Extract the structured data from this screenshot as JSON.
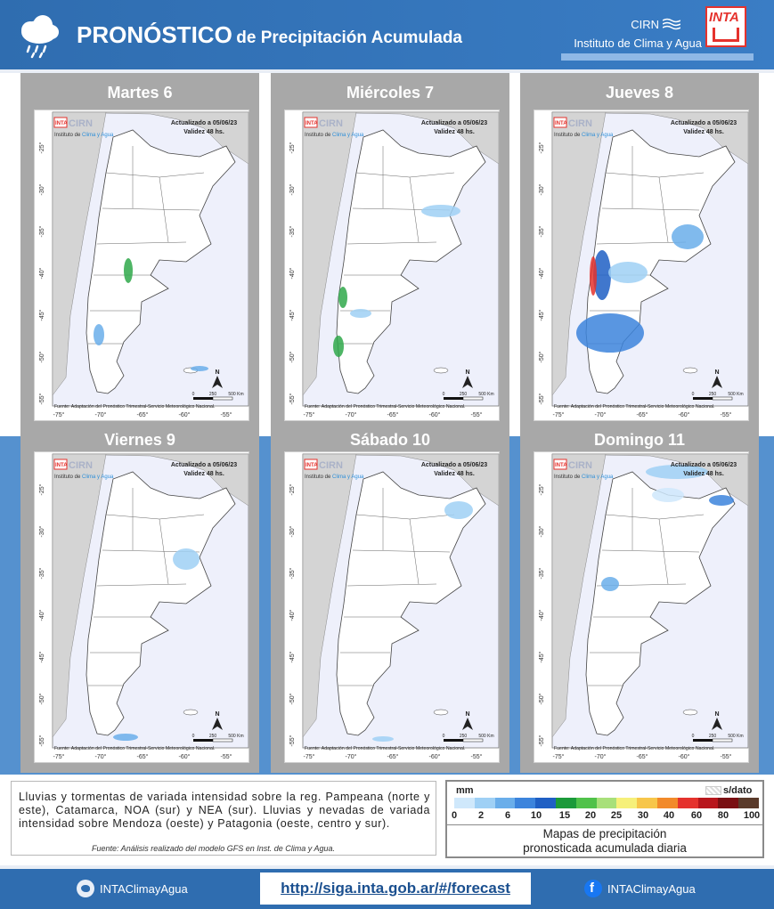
{
  "header": {
    "title_big": "PRONÓSTICO",
    "title_small": "de Precipitación Acumulada",
    "cirn": "CIRN",
    "instituto": "Instituto de Clima y Agua",
    "inta": "INTA",
    "icon": "rain-cloud-icon"
  },
  "map_common": {
    "updated": "Actualizado a 05/06/23",
    "validity": "Validez 48 hs.",
    "logo_inta": "INTA",
    "logo_cirn": "CIRN",
    "logo_instituto_a": "Instituto de ",
    "logo_instituto_b": "Clima y Agua",
    "source": "Fuente: Adaptación del Pronóstico Trimestral-Servicio Meteorológico Nacional.",
    "north": "N",
    "scale": [
      "0",
      "250",
      "500 Km"
    ],
    "lat_ticks": [
      "-25°",
      "-30°",
      "-35°",
      "-40°",
      "-45°",
      "-50°",
      "-55°"
    ],
    "lon_ticks": [
      "-75°",
      "-70°",
      "-65°",
      "-60°",
      "-55°"
    ]
  },
  "panels": [
    {
      "title": "Martes 6"
    },
    {
      "title": "Miércoles 7"
    },
    {
      "title": "Jueves 8"
    },
    {
      "title": "Viernes 9"
    },
    {
      "title": "Sábado 10"
    },
    {
      "title": "Domingo 11"
    }
  ],
  "description": {
    "text": "Lluvias y tormentas de variada intensidad sobre la reg. Pampeana (norte y este), Catamarca, NOA (sur) y NEA (sur). Lluvias y nevadas de variada intensidad sobre Mendoza (oeste) y Patagonia (oeste, centro y sur).",
    "source": "Fuente: Análisis realizado del modelo GFS en Inst. de Clima y Agua."
  },
  "legend": {
    "unit": "mm",
    "no_data": "s/dato",
    "labels": [
      "0",
      "2",
      "6",
      "10",
      "15",
      "20",
      "25",
      "30",
      "40",
      "60",
      "80",
      "100"
    ],
    "colors": [
      "#cfe8fb",
      "#9fd0f5",
      "#6aaeea",
      "#3c84dc",
      "#1f5fc4",
      "#1b9a3a",
      "#50c24a",
      "#a8e07a",
      "#f6f07a",
      "#f7c64a",
      "#f28a2a",
      "#e5322d",
      "#b8161c",
      "#7a0f12",
      "#5a3a2a"
    ],
    "caption_line1": "Mapas de precipitación",
    "caption_line2": "pronosticada acumulada diaria"
  },
  "footer": {
    "twitter": "INTAClimayAgua",
    "url": "http://siga.inta.gob.ar/#/forecast",
    "facebook": "INTAClimayAgua"
  }
}
